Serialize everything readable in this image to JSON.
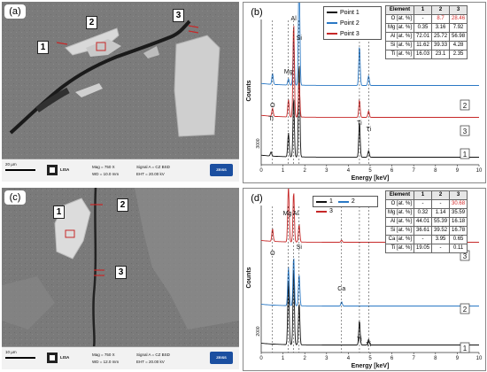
{
  "panels": {
    "a": {
      "label": "(a)",
      "points": [
        "1",
        "2",
        "3"
      ],
      "info": {
        "scale": "20 µm",
        "mag": "Mag =  750 X",
        "wd": "WD = 10.0 mm",
        "signal": "Signal A = CZ BSD",
        "eht": "EHT = 20.00 kV",
        "logo": "LISA",
        "brand": "ZEISS"
      }
    },
    "c": {
      "label": "(c)",
      "points": [
        "1",
        "2",
        "3"
      ],
      "info": {
        "scale": "10 µm",
        "mag": "Mag =  750 X",
        "wd": "WD = 12.0 mm",
        "signal": "Signal A = CZ BSD",
        "eht": "EHT = 20.00 kV",
        "logo": "LISA",
        "brand": "ZEISS"
      }
    }
  },
  "colors": {
    "series1": "#111111",
    "series2": "#2a78c4",
    "series3": "#c62828",
    "highlight": "#d42a2a"
  },
  "chart_data": [
    {
      "panel": "(b)",
      "type": "line",
      "xlabel": "Energy [keV]",
      "ylabel": "Counts",
      "xlim": [
        0,
        10
      ],
      "x_ticks": [
        0,
        1,
        2,
        3,
        4,
        5,
        6,
        7,
        8,
        9,
        10
      ],
      "y_tick_label": "3000",
      "legend": [
        "Point 1",
        "Point 2",
        "Point 3"
      ],
      "legend_position": "top-center",
      "series_labels": [
        "2",
        "3",
        "1"
      ],
      "peak_labels": [
        "O",
        "Ti",
        "Mg",
        "Al",
        "Si",
        "Ti",
        "Ti"
      ],
      "series": [
        {
          "name": "Point 1",
          "offset": 0,
          "peaks": [
            [
              0.45,
              5
            ],
            [
              1.25,
              30
            ],
            [
              1.49,
              75
            ],
            [
              1.74,
              120
            ],
            [
              4.51,
              45
            ],
            [
              4.93,
              8
            ]
          ]
        },
        {
          "name": "Point 2",
          "offset": 90,
          "peaks": [
            [
              0.52,
              14
            ],
            [
              1.25,
              8
            ],
            [
              1.49,
              60
            ],
            [
              1.74,
              140
            ],
            [
              4.51,
              50
            ],
            [
              4.93,
              12
            ]
          ]
        },
        {
          "name": "Point 3",
          "offset": 50,
          "peaks": [
            [
              0.52,
              10
            ],
            [
              1.25,
              22
            ],
            [
              1.49,
              120
            ],
            [
              1.74,
              45
            ],
            [
              4.51,
              22
            ],
            [
              4.93,
              8
            ]
          ]
        }
      ],
      "table": {
        "headers": [
          "Element",
          "1",
          "2",
          "3"
        ],
        "rows": [
          [
            "O [at. %]",
            "-",
            "8.7",
            "28.46"
          ],
          [
            "Mg [at. %]",
            "0.35",
            "3.16",
            "7.92"
          ],
          [
            "Al [at. %]",
            "72.01",
            "25.72",
            "56.98"
          ],
          [
            "Si [at. %]",
            "11.62",
            "39.33",
            "4.28"
          ],
          [
            "Ti [at. %]",
            "16.03",
            "23.1",
            "2.35"
          ]
        ]
      }
    },
    {
      "panel": "(d)",
      "type": "line",
      "xlabel": "Energy [keV]",
      "ylabel": "Counts",
      "xlim": [
        0,
        10
      ],
      "x_ticks": [
        0,
        1,
        2,
        3,
        4,
        5,
        6,
        7,
        8,
        9,
        10
      ],
      "y_tick_label": "2000",
      "legend": [
        "1",
        "2",
        "3"
      ],
      "legend_position": "top-center",
      "series_labels": [
        "3",
        "2",
        "1"
      ],
      "peak_labels": [
        "Mg",
        "Al",
        "O",
        "Si",
        "Ca",
        "Ti",
        "Ti"
      ],
      "series": [
        {
          "name": "1",
          "offset": 0,
          "peaks": [
            [
              1.25,
              90
            ],
            [
              1.49,
              110
            ],
            [
              1.74,
              60
            ],
            [
              4.51,
              35
            ],
            [
              4.93,
              8
            ]
          ]
        },
        {
          "name": "2",
          "offset": 55,
          "peaks": [
            [
              1.25,
              55
            ],
            [
              1.49,
              70
            ],
            [
              1.74,
              45
            ],
            [
              3.69,
              6
            ]
          ]
        },
        {
          "name": "3",
          "offset": 145,
          "peaks": [
            [
              0.52,
              18
            ],
            [
              1.25,
              80
            ],
            [
              1.49,
              72
            ],
            [
              1.74,
              25
            ],
            [
              3.69,
              3
            ]
          ]
        }
      ],
      "table": {
        "headers": [
          "Element",
          "1",
          "2",
          "3"
        ],
        "rows": [
          [
            "O [at. %]",
            "-",
            "-",
            "30.68"
          ],
          [
            "Mg [at. %]",
            "0.32",
            "1.14",
            "35.59"
          ],
          [
            "Al [at. %]",
            "44.01",
            "55.39",
            "16.18"
          ],
          [
            "Si [at. %]",
            "36.61",
            "39.52",
            "16.78"
          ],
          [
            "Ca [at. %]",
            "-",
            "3.95",
            "0.65"
          ],
          [
            "Ti [at. %]",
            "19.05",
            "-",
            "0.11"
          ]
        ]
      }
    }
  ]
}
